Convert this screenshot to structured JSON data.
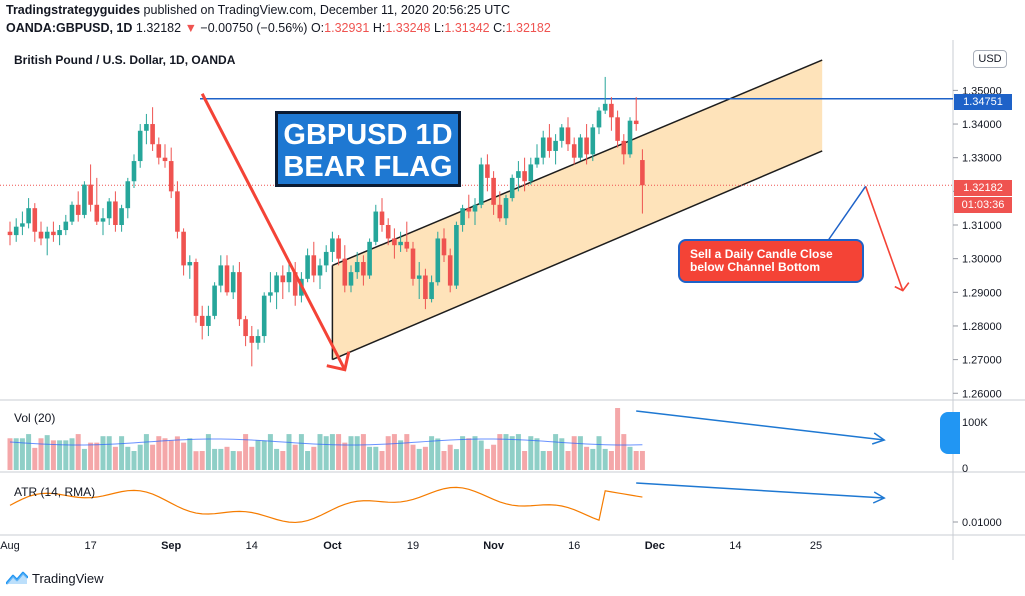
{
  "header": {
    "publisher": "Tradingstrategyguides",
    "published_text": "published on TradingView.com, December 11, 2020 20:56:25 UTC",
    "symbol": "OANDA:GBPUSD, 1D",
    "last": "1.32182",
    "change": "−0.00750 (−0.56%)",
    "o_label": "O:",
    "o_val": "1.32931",
    "h_label": "H:",
    "h_val": "1.33248",
    "l_label": "L:",
    "l_val": "1.31342",
    "c_label": "C:",
    "c_val": "1.32182"
  },
  "chart": {
    "title": "British Pound / U.S. Dollar, 1D, OANDA",
    "currency_button": "USD",
    "annotation_main": [
      "GBPUSD 1D",
      "BEAR FLAG"
    ],
    "annotation_sell": [
      "Sell a Daily Candle Close",
      "below Channel Bottom"
    ],
    "price_tag_line": "1.34751",
    "price_tag_last": "1.32182",
    "countdown": "01:03:36",
    "vol_label": "Vol (20)",
    "atr_label": "ATR (14, RMA)",
    "colors": {
      "up": "#26a69a",
      "down": "#ef5350",
      "up_vol": "#8fcfc7",
      "down_vol": "#f4a7a9",
      "channel": "#fdd9a3",
      "blue": "#1e78d2",
      "red": "#f44336",
      "atr": "#f57c00"
    }
  },
  "footer": {
    "brand": "TradingView"
  },
  "chart_data": {
    "type": "candlestick",
    "title": "British Pound / U.S. Dollar, 1D, OANDA",
    "y_axis_ticks": [
      "1.35000",
      "1.34000",
      "1.33000",
      "1.32000",
      "1.31000",
      "1.30000",
      "1.29000",
      "1.28000",
      "1.27000",
      "1.26000"
    ],
    "ylim": [
      1.258,
      1.362
    ],
    "x_axis_ticks": [
      "Aug",
      "17",
      "Sep",
      "14",
      "Oct",
      "19",
      "Nov",
      "16",
      "Dec",
      "14",
      "25"
    ],
    "x_tick_index": [
      0,
      13,
      26,
      39,
      52,
      65,
      78,
      91,
      104,
      117,
      130
    ],
    "ohlc": [
      [
        1.308,
        1.311,
        1.304,
        1.307
      ],
      [
        1.307,
        1.312,
        1.305,
        1.3095
      ],
      [
        1.3095,
        1.314,
        1.307,
        1.3105
      ],
      [
        1.3105,
        1.318,
        1.309,
        1.315
      ],
      [
        1.315,
        1.3165,
        1.305,
        1.308
      ],
      [
        1.308,
        1.311,
        1.304,
        1.306
      ],
      [
        1.306,
        1.3095,
        1.301,
        1.308
      ],
      [
        1.308,
        1.311,
        1.305,
        1.307
      ],
      [
        1.307,
        1.31,
        1.304,
        1.3085
      ],
      [
        1.3085,
        1.313,
        1.307,
        1.311
      ],
      [
        1.311,
        1.317,
        1.31,
        1.316
      ],
      [
        1.316,
        1.32,
        1.311,
        1.313
      ],
      [
        1.313,
        1.323,
        1.312,
        1.322
      ],
      [
        1.322,
        1.328,
        1.314,
        1.316
      ],
      [
        1.316,
        1.324,
        1.31,
        1.311
      ],
      [
        1.311,
        1.315,
        1.307,
        1.312
      ],
      [
        1.312,
        1.318,
        1.31,
        1.317
      ],
      [
        1.317,
        1.32,
        1.308,
        1.31
      ],
      [
        1.31,
        1.316,
        1.308,
        1.315
      ],
      [
        1.315,
        1.324,
        1.312,
        1.323
      ],
      [
        1.323,
        1.331,
        1.321,
        1.329
      ],
      [
        1.329,
        1.34,
        1.327,
        1.338
      ],
      [
        1.338,
        1.343,
        1.334,
        1.34
      ],
      [
        1.34,
        1.345,
        1.332,
        1.334
      ],
      [
        1.334,
        1.336,
        1.328,
        1.33
      ],
      [
        1.33,
        1.334,
        1.327,
        1.329
      ],
      [
        1.329,
        1.333,
        1.318,
        1.32
      ],
      [
        1.32,
        1.323,
        1.306,
        1.308
      ],
      [
        1.308,
        1.309,
        1.295,
        1.298
      ],
      [
        1.298,
        1.301,
        1.294,
        1.299
      ],
      [
        1.299,
        1.3,
        1.281,
        1.283
      ],
      [
        1.283,
        1.286,
        1.276,
        1.28
      ],
      [
        1.28,
        1.286,
        1.277,
        1.283
      ],
      [
        1.283,
        1.293,
        1.282,
        1.292
      ],
      [
        1.292,
        1.301,
        1.29,
        1.298
      ],
      [
        1.298,
        1.301,
        1.289,
        1.29
      ],
      [
        1.29,
        1.298,
        1.288,
        1.296
      ],
      [
        1.296,
        1.299,
        1.28,
        1.282
      ],
      [
        1.282,
        1.283,
        1.274,
        1.277
      ],
      [
        1.277,
        1.28,
        1.268,
        1.275
      ],
      [
        1.275,
        1.279,
        1.273,
        1.277
      ],
      [
        1.277,
        1.29,
        1.275,
        1.289
      ],
      [
        1.289,
        1.296,
        1.287,
        1.29
      ],
      [
        1.29,
        1.296,
        1.285,
        1.295
      ],
      [
        1.295,
        1.298,
        1.288,
        1.293
      ],
      [
        1.293,
        1.299,
        1.29,
        1.296
      ],
      [
        1.296,
        1.299,
        1.286,
        1.289
      ],
      [
        1.289,
        1.296,
        1.287,
        1.294
      ],
      [
        1.294,
        1.303,
        1.293,
        1.301
      ],
      [
        1.301,
        1.305,
        1.293,
        1.295
      ],
      [
        1.295,
        1.3,
        1.291,
        1.298
      ],
      [
        1.298,
        1.304,
        1.296,
        1.302
      ],
      [
        1.302,
        1.308,
        1.299,
        1.306
      ],
      [
        1.306,
        1.307,
        1.298,
        1.3
      ],
      [
        1.3,
        1.304,
        1.29,
        1.292
      ],
      [
        1.292,
        1.298,
        1.29,
        1.296
      ],
      [
        1.296,
        1.302,
        1.294,
        1.299
      ],
      [
        1.299,
        1.301,
        1.292,
        1.295
      ],
      [
        1.295,
        1.306,
        1.294,
        1.305
      ],
      [
        1.305,
        1.316,
        1.304,
        1.314
      ],
      [
        1.314,
        1.318,
        1.308,
        1.31
      ],
      [
        1.31,
        1.312,
        1.304,
        1.306
      ],
      [
        1.306,
        1.309,
        1.3,
        1.304
      ],
      [
        1.304,
        1.308,
        1.302,
        1.305
      ],
      [
        1.305,
        1.311,
        1.302,
        1.303
      ],
      [
        1.303,
        1.305,
        1.292,
        1.294
      ],
      [
        1.294,
        1.299,
        1.288,
        1.295
      ],
      [
        1.295,
        1.297,
        1.285,
        1.288
      ],
      [
        1.288,
        1.295,
        1.287,
        1.293
      ],
      [
        1.293,
        1.308,
        1.292,
        1.306
      ],
      [
        1.306,
        1.309,
        1.299,
        1.301
      ],
      [
        1.301,
        1.303,
        1.29,
        1.292
      ],
      [
        1.292,
        1.311,
        1.291,
        1.31
      ],
      [
        1.31,
        1.316,
        1.308,
        1.315
      ],
      [
        1.315,
        1.319,
        1.312,
        1.314
      ],
      [
        1.314,
        1.318,
        1.31,
        1.316
      ],
      [
        1.316,
        1.33,
        1.315,
        1.328
      ],
      [
        1.328,
        1.331,
        1.32,
        1.324
      ],
      [
        1.324,
        1.326,
        1.313,
        1.316
      ],
      [
        1.316,
        1.32,
        1.311,
        1.312
      ],
      [
        1.312,
        1.319,
        1.31,
        1.318
      ],
      [
        1.318,
        1.325,
        1.317,
        1.324
      ],
      [
        1.324,
        1.329,
        1.32,
        1.326
      ],
      [
        1.326,
        1.33,
        1.32,
        1.323
      ],
      [
        1.323,
        1.33,
        1.322,
        1.328
      ],
      [
        1.328,
        1.334,
        1.327,
        1.33
      ],
      [
        1.33,
        1.338,
        1.328,
        1.336
      ],
      [
        1.336,
        1.34,
        1.33,
        1.332
      ],
      [
        1.332,
        1.337,
        1.328,
        1.335
      ],
      [
        1.335,
        1.34,
        1.333,
        1.339
      ],
      [
        1.339,
        1.342,
        1.332,
        1.334
      ],
      [
        1.334,
        1.336,
        1.328,
        1.33
      ],
      [
        1.33,
        1.337,
        1.329,
        1.336
      ],
      [
        1.336,
        1.34,
        1.328,
        1.331
      ],
      [
        1.331,
        1.34,
        1.329,
        1.339
      ],
      [
        1.339,
        1.345,
        1.337,
        1.344
      ],
      [
        1.344,
        1.354,
        1.343,
        1.346
      ],
      [
        1.346,
        1.348,
        1.338,
        1.342
      ],
      [
        1.342,
        1.344,
        1.333,
        1.335
      ],
      [
        1.335,
        1.337,
        1.328,
        1.331
      ],
      [
        1.331,
        1.342,
        1.33,
        1.341
      ],
      [
        1.341,
        1.348,
        1.338,
        1.34
      ],
      [
        1.3293,
        1.3325,
        1.3134,
        1.3218
      ]
    ],
    "horizontal_line": 1.34751,
    "last_price": 1.32182,
    "channel": {
      "bottom": [
        [
          52,
          1.27
        ],
        [
          131,
          1.332
        ]
      ],
      "top": [
        [
          52,
          1.298
        ],
        [
          131,
          1.359
        ]
      ]
    },
    "volume_axis": [
      "100K",
      "0"
    ],
    "atr_axis": [
      "0.01000"
    ]
  }
}
